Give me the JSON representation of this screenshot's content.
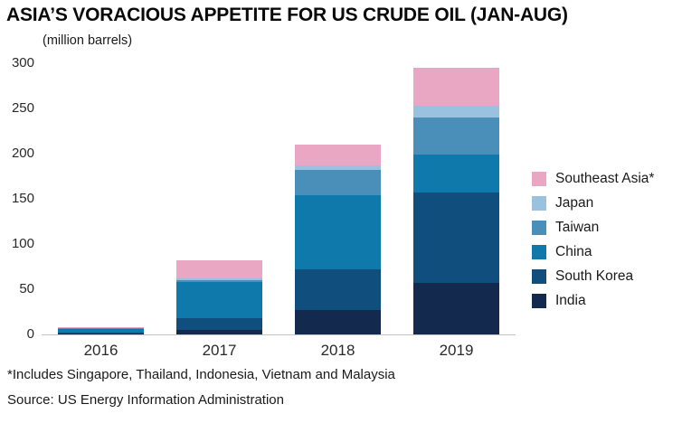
{
  "title": "ASIA’S VORACIOUS APPETITE FOR US CRUDE OIL (JAN-AUG)",
  "units_label": "(million barrels)",
  "footnote": "*Includes Singapore, Thailand, Indonesia, Vietnam and Malaysia",
  "source": "Source: US Energy Information Administration",
  "chart_data": {
    "type": "bar",
    "stacked": true,
    "title": "ASIA’S VORACIOUS APPETITE FOR US CRUDE OIL (JAN-AUG)",
    "ylabel": "(million barrels)",
    "xlabel": "",
    "categories": [
      "2016",
      "2017",
      "2018",
      "2019"
    ],
    "series": [
      {
        "name": "India",
        "color": "#14294e",
        "values": [
          1,
          5,
          27,
          57
        ]
      },
      {
        "name": "South Korea",
        "color": "#0f4e7d",
        "values": [
          1,
          13,
          45,
          100
        ]
      },
      {
        "name": "China",
        "color": "#1079ab",
        "values": [
          4,
          40,
          82,
          42
        ]
      },
      {
        "name": "Taiwan",
        "color": "#4a8fba",
        "values": [
          1,
          2,
          28,
          41
        ]
      },
      {
        "name": "Japan",
        "color": "#9ac2df",
        "values": [
          0.5,
          2,
          5,
          13
        ]
      },
      {
        "name": "Southeast Asia*",
        "color": "#e9a7c3",
        "values": [
          0.5,
          20,
          23,
          42
        ]
      }
    ],
    "totals": [
      8,
      82,
      210,
      295
    ],
    "ylim": [
      0,
      300
    ],
    "yticks": [
      0,
      50,
      100,
      150,
      200,
      250,
      300
    ],
    "grid": false,
    "legend_position": "right",
    "legend_order": [
      "Southeast Asia*",
      "Japan",
      "Taiwan",
      "China",
      "South Korea",
      "India"
    ]
  }
}
